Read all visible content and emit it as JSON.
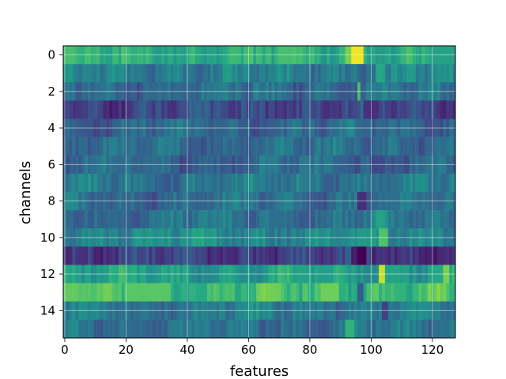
{
  "chart_data": {
    "type": "heatmap",
    "title": "",
    "xlabel": "features",
    "ylabel": "channels",
    "n_rows": 16,
    "n_cols": 128,
    "x_ticks": [
      0,
      20,
      40,
      60,
      80,
      100,
      120
    ],
    "y_ticks": [
      0,
      2,
      4,
      6,
      8,
      10,
      12,
      14
    ],
    "xlim": [
      -0.5,
      127.5
    ],
    "ylim": [
      15.5,
      -0.5
    ],
    "colormap": "viridis",
    "value_range": [
      0,
      1
    ],
    "grid": true,
    "grid_color": "#ffffff",
    "row_levels": [
      0.62,
      0.42,
      0.36,
      0.22,
      0.33,
      0.36,
      0.34,
      0.4,
      0.36,
      0.38,
      0.48,
      0.18,
      0.56,
      0.68,
      0.42,
      0.38
    ],
    "features": [
      {
        "row": 0,
        "col_start": 94,
        "col_end": 97,
        "value": 0.98
      },
      {
        "row": 0,
        "col_start": 92,
        "col_end": 93,
        "value": 0.8
      },
      {
        "row": 0,
        "col_start": 0,
        "col_end": 3,
        "value": 0.7
      },
      {
        "row": 0,
        "col_start": 54,
        "col_end": 56,
        "value": 0.68
      },
      {
        "row": 0,
        "col_start": 70,
        "col_end": 74,
        "value": 0.7
      },
      {
        "row": 0,
        "col_start": 120,
        "col_end": 127,
        "value": 0.58
      },
      {
        "row": 1,
        "col_start": 102,
        "col_end": 104,
        "value": 0.6
      },
      {
        "row": 1,
        "col_start": 112,
        "col_end": 114,
        "value": 0.55
      },
      {
        "row": 2,
        "col_start": 96,
        "col_end": 96,
        "value": 0.7
      },
      {
        "row": 3,
        "col_start": 98,
        "col_end": 102,
        "value": 0.14
      },
      {
        "row": 6,
        "col_start": 100,
        "col_end": 104,
        "value": 0.22
      },
      {
        "row": 8,
        "col_start": 96,
        "col_end": 98,
        "value": 0.14
      },
      {
        "row": 9,
        "col_start": 102,
        "col_end": 104,
        "value": 0.58
      },
      {
        "row": 10,
        "col_start": 103,
        "col_end": 105,
        "value": 0.72
      },
      {
        "row": 10,
        "col_start": 96,
        "col_end": 98,
        "value": 0.55
      },
      {
        "row": 11,
        "col_start": 96,
        "col_end": 98,
        "value": 0.0
      },
      {
        "row": 11,
        "col_start": 94,
        "col_end": 95,
        "value": 0.08
      },
      {
        "row": 12,
        "col_start": 103,
        "col_end": 104,
        "value": 0.92
      },
      {
        "row": 12,
        "col_start": 124,
        "col_end": 125,
        "value": 0.8
      },
      {
        "row": 13,
        "col_start": 0,
        "col_end": 4,
        "value": 0.76
      },
      {
        "row": 13,
        "col_start": 20,
        "col_end": 34,
        "value": 0.74
      },
      {
        "row": 13,
        "col_start": 84,
        "col_end": 89,
        "value": 0.78
      },
      {
        "row": 13,
        "col_start": 96,
        "col_end": 97,
        "value": 0.3
      },
      {
        "row": 14,
        "col_start": 104,
        "col_end": 105,
        "value": 0.2
      },
      {
        "row": 15,
        "col_start": 92,
        "col_end": 94,
        "value": 0.65
      }
    ]
  }
}
